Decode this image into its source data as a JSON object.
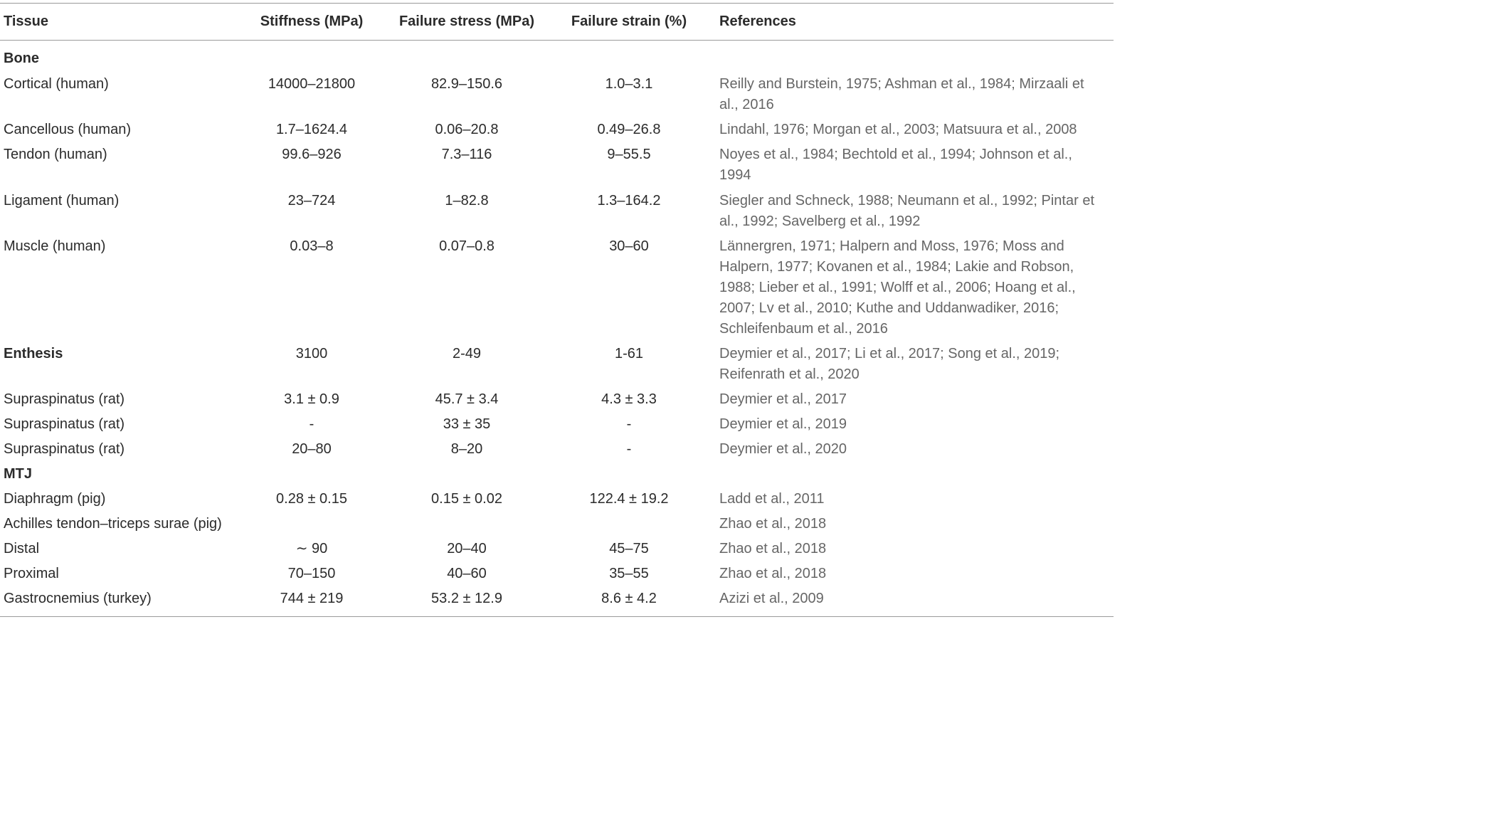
{
  "table": {
    "headers": {
      "tissue": "Tissue",
      "stiffness": "Stiffness (MPa)",
      "failure_stress": "Failure stress (MPa)",
      "failure_strain": "Failure strain (%)",
      "references": "References"
    },
    "rows": [
      {
        "kind": "section",
        "tissue": "Bone",
        "stiffness": "",
        "failure_stress": "",
        "failure_strain": "",
        "references": ""
      },
      {
        "kind": "data",
        "tissue": "Cortical (human)",
        "stiffness": "14000–21800",
        "failure_stress": "82.9–150.6",
        "failure_strain": "1.0–3.1",
        "references": "Reilly and Burstein, 1975; Ashman et al., 1984; Mirzaali et al., 2016"
      },
      {
        "kind": "data",
        "tissue": "Cancellous (human)",
        "stiffness": "1.7–1624.4",
        "failure_stress": "0.06–20.8",
        "failure_strain": "0.49–26.8",
        "references": "Lindahl, 1976; Morgan et al., 2003; Matsuura et al., 2008"
      },
      {
        "kind": "data",
        "tissue": "Tendon (human)",
        "stiffness": "99.6–926",
        "failure_stress": "7.3–116",
        "failure_strain": "9–55.5",
        "references": "Noyes et al., 1984; Bechtold et al., 1994; Johnson et al., 1994"
      },
      {
        "kind": "data",
        "tissue": "Ligament (human)",
        "stiffness": "23–724",
        "failure_stress": "1–82.8",
        "failure_strain": "1.3–164.2",
        "references": "Siegler and Schneck, 1988; Neumann et al., 1992; Pintar et al., 1992; Savelberg et al., 1992"
      },
      {
        "kind": "data",
        "tissue": "Muscle (human)",
        "stiffness": "0.03–8",
        "failure_stress": "0.07–0.8",
        "failure_strain": "30–60",
        "references": "Lännergren, 1971; Halpern and Moss, 1976; Moss and Halpern, 1977; Kovanen et al., 1984; Lakie and Robson, 1988; Lieber et al., 1991; Wolff et al., 2006; Hoang et al., 2007; Lv et al., 2010; Kuthe and Uddanwadiker, 2016; Schleifenbaum et al., 2016"
      },
      {
        "kind": "section",
        "tissue": "Enthesis",
        "stiffness": "3100",
        "failure_stress": "2-49",
        "failure_strain": "1-61",
        "references": "Deymier et al., 2017; Li et al., 2017; Song et al., 2019; Reifenrath et al., 2020"
      },
      {
        "kind": "data",
        "tissue": "Supraspinatus (rat)",
        "stiffness": "3.1 ± 0.9",
        "failure_stress": "45.7 ± 3.4",
        "failure_strain": "4.3 ± 3.3",
        "references": "Deymier et al., 2017"
      },
      {
        "kind": "data",
        "tissue": "Supraspinatus (rat)",
        "stiffness": "-",
        "failure_stress": "33 ± 35",
        "failure_strain": "-",
        "references": "Deymier et al., 2019"
      },
      {
        "kind": "data",
        "tissue": "Supraspinatus (rat)",
        "stiffness": "20–80",
        "failure_stress": "8–20",
        "failure_strain": "-",
        "references": "Deymier et al., 2020"
      },
      {
        "kind": "section",
        "tissue": "MTJ",
        "stiffness": "",
        "failure_stress": "",
        "failure_strain": "",
        "references": ""
      },
      {
        "kind": "data",
        "tissue": "Diaphragm (pig)",
        "stiffness": "0.28 ± 0.15",
        "failure_stress": "0.15 ± 0.02",
        "failure_strain": "122.4 ± 19.2",
        "references": "Ladd et al., 2011"
      },
      {
        "kind": "data",
        "tissue": "Achilles tendon–triceps surae (pig)",
        "stiffness": "",
        "failure_stress": "",
        "failure_strain": "",
        "references": "Zhao et al., 2018"
      },
      {
        "kind": "data",
        "tissue": "Distal",
        "stiffness": "∼ 90",
        "failure_stress": "20–40",
        "failure_strain": "45–75",
        "references": "Zhao et al., 2018"
      },
      {
        "kind": "data",
        "tissue": "Proximal",
        "stiffness": "70–150",
        "failure_stress": "40–60",
        "failure_strain": "35–55",
        "references": "Zhao et al., 2018"
      },
      {
        "kind": "data",
        "tissue": "Gastrocnemius (turkey)",
        "stiffness": "744 ± 219",
        "failure_stress": "53.2 ± 12.9",
        "failure_strain": "8.6 ± 4.2",
        "references": "Azizi et al., 2009"
      }
    ]
  }
}
